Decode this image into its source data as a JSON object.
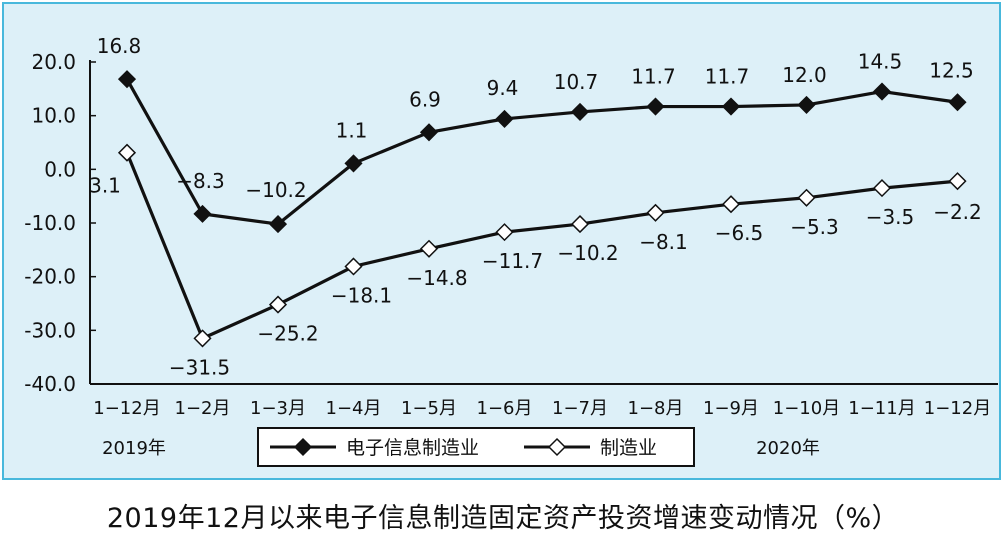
{
  "chart_data": {
    "type": "line",
    "title": "2019年12月以来电子信息制造固定资产投资增速变动情况（%）",
    "categories": [
      "1−12月",
      "1−2月",
      "1−3月",
      "1−4月",
      "1−5月",
      "1−6月",
      "1−7月",
      "1−8月",
      "1−9月",
      "1−10月",
      "1−11月",
      "1−12月"
    ],
    "period_labels": [
      "2019年",
      "2020年"
    ],
    "y_ticks": [
      "20.0",
      "10.0",
      "0.0",
      "-10.0",
      "-20.0",
      "-30.0",
      "-40.0"
    ],
    "ylim": [
      -40,
      20
    ],
    "grid": false,
    "legend_position": "bottom",
    "series": [
      {
        "name": "电子信息制造业",
        "marker": "filled-diamond",
        "color": "#111111",
        "values": [
          16.8,
          -8.3,
          -10.2,
          1.1,
          6.9,
          9.4,
          10.7,
          11.7,
          11.7,
          12.0,
          14.5,
          12.5
        ],
        "labels": [
          "16.8",
          "−8.3",
          "−10.2",
          "1.1",
          "6.9",
          "9.4",
          "10.7",
          "11.7",
          "11.7",
          "12.0",
          "14.5",
          "12.5"
        ]
      },
      {
        "name": "制造业",
        "marker": "hollow-diamond",
        "color": "#111111",
        "values": [
          3.1,
          -31.5,
          -25.2,
          -18.1,
          -14.8,
          -11.7,
          -10.2,
          -8.1,
          -6.5,
          -5.3,
          -3.5,
          -2.2
        ],
        "labels": [
          "3.1",
          "−31.5",
          "−25.2",
          "−18.1",
          "−14.8",
          "−11.7",
          "−10.2",
          "−8.1",
          "−6.5",
          "−5.3",
          "−3.5",
          "−2.2"
        ]
      }
    ]
  },
  "colors": {
    "background": "#ddf0f8",
    "frame": "#48b8dc",
    "ink": "#111111"
  }
}
